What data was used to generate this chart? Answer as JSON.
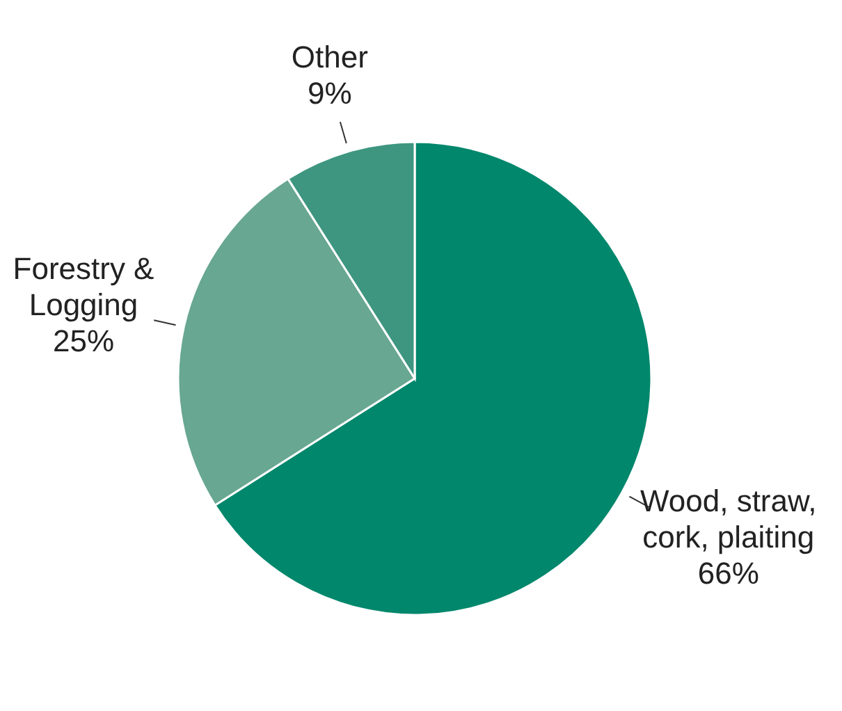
{
  "chart_data": {
    "type": "pie",
    "categories": [
      "Wood, straw, cork, plaiting",
      "Forestry & Logging",
      "Other"
    ],
    "values": [
      66,
      25,
      9
    ],
    "colors": [
      "#00876c",
      "#68a792",
      "#3e9680"
    ],
    "value_labels": [
      "66%",
      "25%",
      "9%"
    ]
  }
}
